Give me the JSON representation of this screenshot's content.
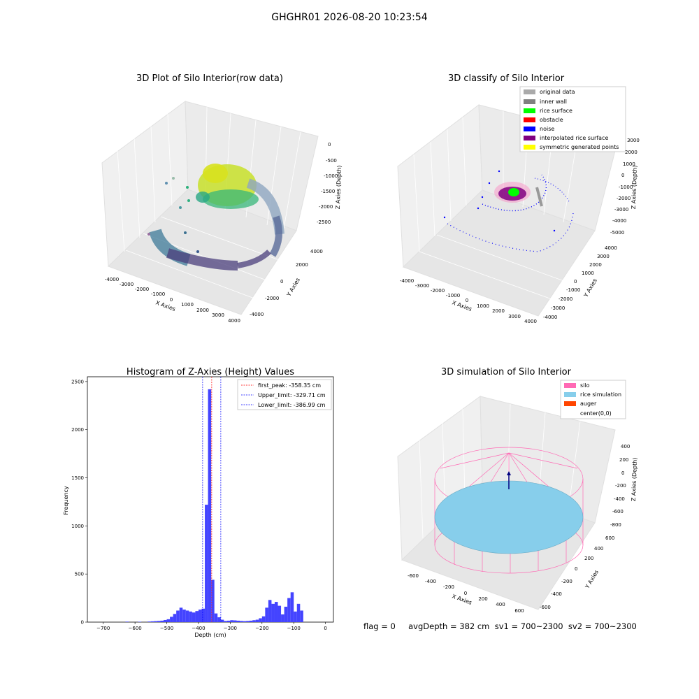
{
  "suptitle": "GHGHR01 2026-08-20 10:23:54",
  "footer": "flag = 0     avgDepth = 382 cm  sv1 = 700~2300  sv2 = 700~2300",
  "chart_data": [
    {
      "type": "scatter3d",
      "title": "3D Plot of Silo Interior(row data)",
      "xlabel": "X Axies",
      "ylabel": "Y Axies",
      "zlabel": "Z Axies (Depth)",
      "x_ticks": [
        "-4000",
        "-3000",
        "-2000",
        "-1000",
        "0",
        "1000",
        "2000",
        "3000",
        "4000"
      ],
      "y_ticks": [
        "-4000",
        "-2000",
        "0",
        "2000",
        "4000"
      ],
      "z_ticks": [
        "0",
        "-500",
        "-1000",
        "-1500",
        "-2000",
        "-2500"
      ],
      "grid": true
    },
    {
      "type": "scatter3d",
      "title": "3D classify of Silo Interior",
      "xlabel": "X Axies",
      "ylabel": "Y Axies",
      "zlabel": "Z Axies (Depth)",
      "x_ticks": [
        "-4000",
        "-3000",
        "-2000",
        "-1000",
        "0",
        "1000",
        "2000",
        "3000",
        "4000"
      ],
      "y_ticks": [
        "-4000",
        "-3000",
        "-2000",
        "-1000",
        "0",
        "1000",
        "2000",
        "3000",
        "4000"
      ],
      "z_ticks": [
        "3000",
        "2000",
        "1000",
        "0",
        "-1000",
        "-2000",
        "-3000",
        "-4000",
        "-5000"
      ],
      "legend": [
        {
          "label": "original data",
          "color": "#aaaaaa"
        },
        {
          "label": "inner wall",
          "color": "#808080"
        },
        {
          "label": "rice surface",
          "color": "#00ff00"
        },
        {
          "label": "obstacle",
          "color": "#ff0000"
        },
        {
          "label": "noise",
          "color": "#0000ff"
        },
        {
          "label": "interpolated rice surface",
          "color": "#800080"
        },
        {
          "label": "symmetric generated points",
          "color": "#ffff00"
        }
      ],
      "legend_position": "top-right",
      "grid": true
    },
    {
      "type": "bar",
      "title": "Histogram of Z-Axies (Height) Values",
      "xlabel": "Depth (cm)",
      "ylabel": "Frequency",
      "xlim": [
        -750,
        25
      ],
      "ylim": [
        0,
        2550
      ],
      "x_ticks": [
        -700,
        -600,
        -500,
        -400,
        -300,
        -200,
        -100,
        0
      ],
      "y_ticks": [
        0,
        500,
        1000,
        1500,
        2000,
        2500
      ],
      "bin_width": 10,
      "bins": [
        {
          "x": -630,
          "v": 5
        },
        {
          "x": -590,
          "v": 4
        },
        {
          "x": -560,
          "v": 6
        },
        {
          "x": -550,
          "v": 8
        },
        {
          "x": -540,
          "v": 10
        },
        {
          "x": -530,
          "v": 12
        },
        {
          "x": -520,
          "v": 15
        },
        {
          "x": -510,
          "v": 22
        },
        {
          "x": -500,
          "v": 30
        },
        {
          "x": -490,
          "v": 55
        },
        {
          "x": -480,
          "v": 85
        },
        {
          "x": -470,
          "v": 120
        },
        {
          "x": -460,
          "v": 150
        },
        {
          "x": -450,
          "v": 130
        },
        {
          "x": -440,
          "v": 120
        },
        {
          "x": -430,
          "v": 110
        },
        {
          "x": -420,
          "v": 100
        },
        {
          "x": -410,
          "v": 115
        },
        {
          "x": -400,
          "v": 130
        },
        {
          "x": -390,
          "v": 140
        },
        {
          "x": -380,
          "v": 1220
        },
        {
          "x": -370,
          "v": 2420
        },
        {
          "x": -360,
          "v": 440
        },
        {
          "x": -350,
          "v": 90
        },
        {
          "x": -340,
          "v": 50
        },
        {
          "x": -330,
          "v": 25
        },
        {
          "x": -320,
          "v": 12
        },
        {
          "x": -310,
          "v": 15
        },
        {
          "x": -300,
          "v": 20
        },
        {
          "x": -290,
          "v": 18
        },
        {
          "x": -280,
          "v": 15
        },
        {
          "x": -270,
          "v": 12
        },
        {
          "x": -260,
          "v": 10
        },
        {
          "x": -250,
          "v": 12
        },
        {
          "x": -240,
          "v": 15
        },
        {
          "x": -230,
          "v": 20
        },
        {
          "x": -220,
          "v": 25
        },
        {
          "x": -210,
          "v": 40
        },
        {
          "x": -200,
          "v": 60
        },
        {
          "x": -190,
          "v": 150
        },
        {
          "x": -180,
          "v": 230
        },
        {
          "x": -170,
          "v": 190
        },
        {
          "x": -160,
          "v": 210
        },
        {
          "x": -150,
          "v": 170
        },
        {
          "x": -140,
          "v": 80
        },
        {
          "x": -130,
          "v": 160
        },
        {
          "x": -120,
          "v": 250
        },
        {
          "x": -110,
          "v": 310
        },
        {
          "x": -100,
          "v": 110
        },
        {
          "x": -90,
          "v": 190
        },
        {
          "x": -80,
          "v": 120
        }
      ],
      "bar_color": "#4444ff",
      "vlines": [
        {
          "x": -358.35,
          "color": "#ff0000",
          "label": "first_peak: -358.35 cm"
        },
        {
          "x": -329.71,
          "color": "#0000ff",
          "label": "Upper_limit: -329.71 cm"
        },
        {
          "x": -386.99,
          "color": "#0000ff",
          "label": "Lower_limit: -386.99 cm"
        }
      ],
      "legend_position": "top-right"
    },
    {
      "type": "surface3d",
      "title": "3D simulation of Silo Interior",
      "xlabel": "X Axies",
      "ylabel": "Y Axies",
      "zlabel": "Z Axies (Depth)",
      "x_ticks": [
        "-600",
        "-400",
        "-200",
        "0",
        "200",
        "400",
        "600"
      ],
      "y_ticks": [
        "-600",
        "-400",
        "-200",
        "0",
        "200",
        "400",
        "600"
      ],
      "z_ticks": [
        "400",
        "200",
        "0",
        "-200",
        "-400",
        "-600",
        "-800"
      ],
      "legend": [
        {
          "label": "silo",
          "color": "#ff69b4"
        },
        {
          "label": "rice simulation",
          "color": "#87ceeb"
        },
        {
          "label": "auger",
          "color": "#ff4500"
        },
        {
          "label": "center(0,0)",
          "color": ""
        }
      ],
      "legend_position": "top-right",
      "grid": true
    }
  ]
}
